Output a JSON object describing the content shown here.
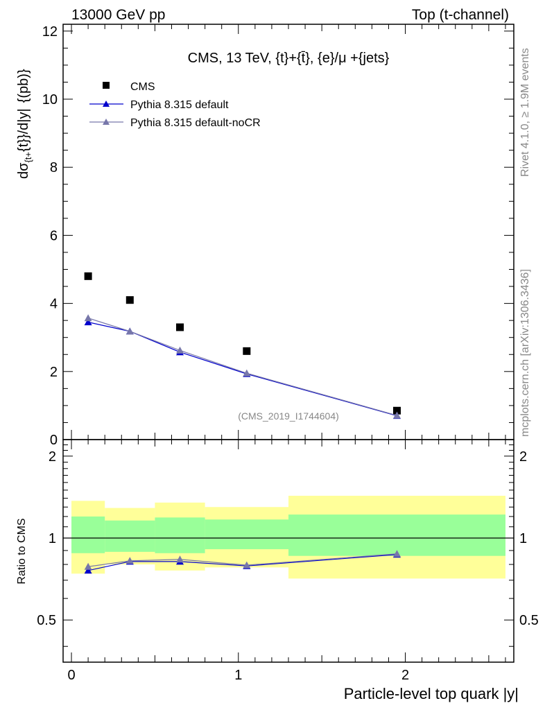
{
  "header": {
    "left": "13000 GeV pp",
    "right": "Top (t-channel)"
  },
  "side": {
    "rivet": "Rivet 4.1.0, ≥ 1.9M events",
    "mcplots": "mcplots.cern.ch [arXiv:1306.3436]"
  },
  "chart_data": {
    "type": "scatter",
    "title": "CMS, 13 TeV, {t}+{t̄}, {e}/μ +{jets}",
    "analysis_tag": "(CMS_2019_I1744604)",
    "ylabel_parts": {
      "d_sigma": "dσ",
      "sub": "{t+",
      "t": "{t}}/d|y|",
      "unit": "{(pb)}"
    },
    "xlabel": "Particle-level top quark |y|",
    "ratio_ylabel": "Ratio to CMS",
    "xlim": [
      -0.05,
      2.65
    ],
    "ylim": [
      0,
      12.2
    ],
    "ratio_ylim": [
      0.35,
      2.3
    ],
    "main_yticks": [
      "0",
      "2",
      "4",
      "6",
      "8",
      "10",
      "12"
    ],
    "ratio_yticks": [
      "0.5",
      "1",
      "2"
    ],
    "xticks": [
      "0",
      "1",
      "2"
    ],
    "bins": [
      {
        "lo": 0.0,
        "hi": 0.2,
        "x": 0.1
      },
      {
        "lo": 0.2,
        "hi": 0.5,
        "x": 0.35
      },
      {
        "lo": 0.5,
        "hi": 0.8,
        "x": 0.65
      },
      {
        "lo": 0.8,
        "hi": 1.3,
        "x": 1.05
      },
      {
        "lo": 1.3,
        "hi": 2.6,
        "x": 1.95
      }
    ],
    "legend": [
      {
        "label": "CMS"
      },
      {
        "label": "Pythia 8.315 default"
      },
      {
        "label": "Pythia 8.315 default-noCR"
      }
    ],
    "series": [
      {
        "name": "CMS",
        "color": "#000000",
        "values": [
          4.8,
          4.1,
          3.3,
          2.6,
          0.85
        ]
      },
      {
        "name": "Pythia 8.315 default",
        "color": "#0000cc",
        "values": [
          3.45,
          3.18,
          2.57,
          1.93,
          0.7
        ]
      },
      {
        "name": "Pythia 8.315 default-noCR",
        "color": "#7777aa",
        "values": [
          3.57,
          3.18,
          2.62,
          1.95,
          0.71
        ]
      }
    ],
    "ratio_series": [
      {
        "name": "Pythia 8.315 default",
        "color": "#0000cc",
        "values": [
          0.76,
          0.82,
          0.82,
          0.79,
          0.87
        ]
      },
      {
        "name": "Pythia 8.315 default-noCR",
        "color": "#7777aa",
        "values": [
          0.785,
          0.825,
          0.835,
          0.795,
          0.875
        ]
      }
    ],
    "band_yellow": [
      [
        0.74,
        1.37
      ],
      [
        0.8,
        1.29
      ],
      [
        0.76,
        1.35
      ],
      [
        0.78,
        1.3
      ],
      [
        0.71,
        1.43
      ]
    ],
    "band_green": [
      [
        0.88,
        1.2
      ],
      [
        0.89,
        1.16
      ],
      [
        0.88,
        1.19
      ],
      [
        0.91,
        1.17
      ],
      [
        0.86,
        1.22
      ]
    ],
    "colors": {
      "yellow": "#ffff99",
      "green": "#99ff99"
    }
  }
}
